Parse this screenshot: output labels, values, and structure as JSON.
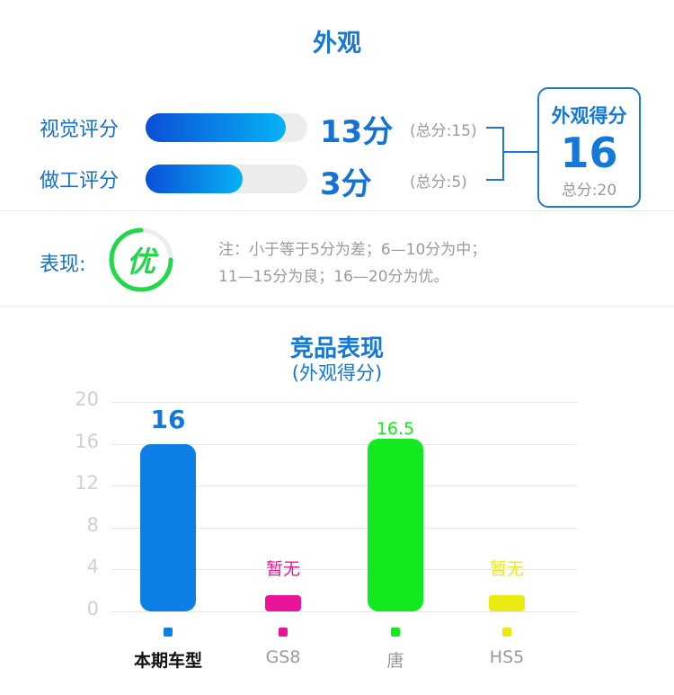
{
  "section_title": "外观",
  "ratings": [
    {
      "label": "视觉评分",
      "score_text": "13分",
      "total_text": "(总分:15)",
      "fraction": 0.8667
    },
    {
      "label": "做工评分",
      "score_text": "3分",
      "total_text": "(总分:5)",
      "fraction": 0.6
    }
  ],
  "summary": {
    "title": "外观得分",
    "score": "16",
    "total": "总分:20"
  },
  "grade": {
    "label": "表现:",
    "value": "优",
    "note_line1": "注：小于等于5分为差；6—10分为中；",
    "note_line2": "11—15分为良；16—20分为优。"
  },
  "colors": {
    "primary": "#1478d8",
    "grade": "#22d84a"
  },
  "chart_data": {
    "type": "bar",
    "title": "竞品表现",
    "subtitle": "(外观得分)",
    "ylim": [
      0,
      20
    ],
    "yticks": [
      "20",
      "16",
      "12",
      "8",
      "4",
      "0"
    ],
    "categories": [
      "本期车型",
      "GS8",
      "唐",
      "HS5"
    ],
    "values": [
      16,
      null,
      16.5,
      null
    ],
    "value_labels": [
      "16",
      "暂无",
      "16.5",
      "暂无"
    ],
    "colors": [
      "#0e7fe6",
      "#ea1499",
      "#12ea1f",
      "#eaea12"
    ],
    "grid": true
  }
}
